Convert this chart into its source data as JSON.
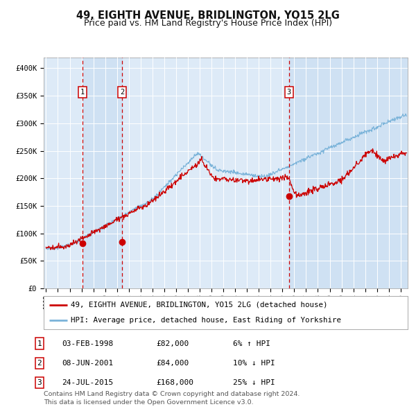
{
  "title": "49, EIGHTH AVENUE, BRIDLINGTON, YO15 2LG",
  "subtitle": "Price paid vs. HM Land Registry's House Price Index (HPI)",
  "ylim": [
    0,
    420000
  ],
  "yticks": [
    0,
    50000,
    100000,
    150000,
    200000,
    250000,
    300000,
    350000,
    400000
  ],
  "ytick_labels": [
    "£0",
    "£50K",
    "£100K",
    "£150K",
    "£200K",
    "£250K",
    "£300K",
    "£350K",
    "£400K"
  ],
  "xlim_start": 1994.8,
  "xlim_end": 2025.6,
  "background_color": "#ffffff",
  "plot_bg_color": "#ddeaf7",
  "grid_color": "#ffffff",
  "hpi_line_color": "#7ab3d9",
  "price_line_color": "#cc0000",
  "sale_marker_color": "#cc0000",
  "vline_color": "#cc0000",
  "transaction_label_border": "#cc0000",
  "transactions": [
    {
      "num": 1,
      "date": "03-FEB-1998",
      "price": 82000,
      "x": 1998.09,
      "label": "6% ↑ HPI"
    },
    {
      "num": 2,
      "date": "08-JUN-2001",
      "price": 84000,
      "x": 2001.44,
      "label": "10% ↓ HPI"
    },
    {
      "num": 3,
      "date": "24-JUL-2015",
      "price": 168000,
      "x": 2015.56,
      "label": "25% ↓ HPI"
    }
  ],
  "legend_entries": [
    "49, EIGHTH AVENUE, BRIDLINGTON, YO15 2LG (detached house)",
    "HPI: Average price, detached house, East Riding of Yorkshire"
  ],
  "table_rows": [
    [
      "1",
      "03-FEB-1998",
      "£82,000",
      "6% ↑ HPI"
    ],
    [
      "2",
      "08-JUN-2001",
      "£84,000",
      "10% ↓ HPI"
    ],
    [
      "3",
      "24-JUL-2015",
      "£168,000",
      "25% ↓ HPI"
    ]
  ],
  "footnote": "Contains HM Land Registry data © Crown copyright and database right 2024.\nThis data is licensed under the Open Government Licence v3.0.",
  "title_fontsize": 10.5,
  "subtitle_fontsize": 9,
  "tick_fontsize": 7.5,
  "legend_fontsize": 7.8,
  "table_fontsize": 8,
  "footnote_fontsize": 6.8
}
